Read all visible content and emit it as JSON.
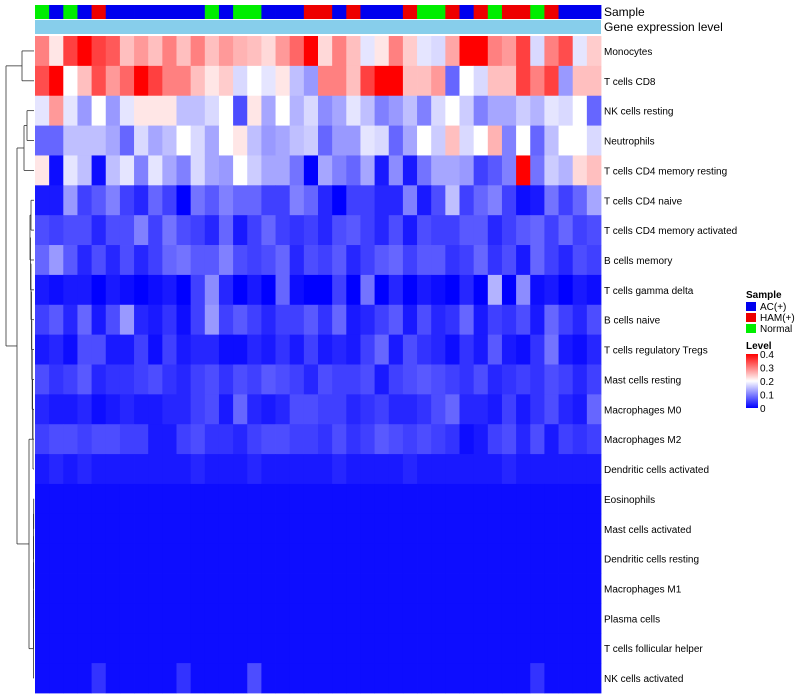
{
  "chart_data": {
    "type": "heatmap",
    "annotation_tracks": [
      "Sample",
      "Gene expression level"
    ],
    "rows": [
      "Monocytes",
      "T cells CD8",
      "NK cells resting",
      "Neutrophils",
      "T cells CD4 memory resting",
      "T cells CD4 naive",
      "T cells CD4 memory activated",
      "B cells memory",
      "T cells gamma delta",
      "B cells naive",
      "T cells regulatory  Tregs",
      "Mast cells resting",
      "Macrophages M0",
      "Macrophages M2",
      "Dendritic cells activated",
      "Eosinophils",
      "Mast cells activated",
      "Dendritic cells resting",
      "Macrophages M1",
      "Plasma cells",
      "T cells follicular helper",
      "NK cells activated"
    ],
    "column_samples": [
      "Normal",
      "AC(+)",
      "Normal",
      "AC(+)",
      "HAM(+)",
      "AC(+)",
      "AC(+)",
      "AC(+)",
      "AC(+)",
      "AC(+)",
      "AC(+)",
      "AC(+)",
      "Normal",
      "AC(+)",
      "Normal",
      "Normal",
      "AC(+)",
      "AC(+)",
      "AC(+)",
      "HAM(+)",
      "HAM(+)",
      "AC(+)",
      "HAM(+)",
      "AC(+)",
      "AC(+)",
      "AC(+)",
      "HAM(+)",
      "Normal",
      "Normal",
      "HAM(+)",
      "AC(+)",
      "HAM(+)",
      "Normal",
      "HAM(+)",
      "HAM(+)",
      "Normal",
      "HAM(+)",
      "AC(+)",
      "AC(+)",
      "AC(+)"
    ],
    "values": [
      [
        0.3,
        0.22,
        0.35,
        0.42,
        0.35,
        0.33,
        0.25,
        0.28,
        0.25,
        0.3,
        0.25,
        0.3,
        0.25,
        0.28,
        0.26,
        0.25,
        0.23,
        0.28,
        0.32,
        0.42,
        0.23,
        0.3,
        0.25,
        0.18,
        0.22,
        0.3,
        0.24,
        0.18,
        0.17,
        0.27,
        0.4,
        0.42,
        0.3,
        0.28,
        0.35,
        0.17,
        0.3,
        0.34,
        0.18,
        0.24
      ],
      [
        0.34,
        0.42,
        0.2,
        0.25,
        0.34,
        0.28,
        0.32,
        0.42,
        0.35,
        0.3,
        0.3,
        0.25,
        0.22,
        0.24,
        0.17,
        0.2,
        0.18,
        0.22,
        0.15,
        0.12,
        0.3,
        0.3,
        0.25,
        0.35,
        0.4,
        0.4,
        0.25,
        0.25,
        0.28,
        0.08,
        0.2,
        0.17,
        0.25,
        0.25,
        0.35,
        0.3,
        0.35,
        0.12,
        0.25,
        0.25
      ],
      [
        0.18,
        0.28,
        0.18,
        0.12,
        0.2,
        0.12,
        0.18,
        0.22,
        0.22,
        0.22,
        0.15,
        0.15,
        0.17,
        0.2,
        0.06,
        0.22,
        0.13,
        0.2,
        0.14,
        0.17,
        0.11,
        0.13,
        0.18,
        0.15,
        0.1,
        0.12,
        0.15,
        0.1,
        0.17,
        0.2,
        0.16,
        0.1,
        0.13,
        0.13,
        0.16,
        0.14,
        0.18,
        0.17,
        0.2,
        0.08
      ],
      [
        0.08,
        0.08,
        0.15,
        0.15,
        0.15,
        0.13,
        0.08,
        0.17,
        0.13,
        0.15,
        0.2,
        0.17,
        0.13,
        0.2,
        0.22,
        0.15,
        0.12,
        0.13,
        0.15,
        0.16,
        0.08,
        0.12,
        0.12,
        0.18,
        0.17,
        0.08,
        0.13,
        0.2,
        0.16,
        0.25,
        0.17,
        0.2,
        0.26,
        0.1,
        0.2,
        0.08,
        0.15,
        0.2,
        0.2,
        0.17
      ],
      [
        0.22,
        0.01,
        0.18,
        0.15,
        0.01,
        0.15,
        0.18,
        0.1,
        0.18,
        0.13,
        0.1,
        0.17,
        0.13,
        0.12,
        0.2,
        0.16,
        0.13,
        0.13,
        0.09,
        0.0,
        0.13,
        0.1,
        0.08,
        0.13,
        0.02,
        0.11,
        0.02,
        0.09,
        0.13,
        0.13,
        0.12,
        0.05,
        0.07,
        0.1,
        0.4,
        0.09,
        0.16,
        0.14,
        0.23,
        0.25
      ],
      [
        0.02,
        0.02,
        0.12,
        0.05,
        0.07,
        0.1,
        0.05,
        0.03,
        0.08,
        0.05,
        0.0,
        0.09,
        0.07,
        0.1,
        0.08,
        0.08,
        0.05,
        0.05,
        0.1,
        0.08,
        0.03,
        0.0,
        0.05,
        0.05,
        0.03,
        0.03,
        0.1,
        0.02,
        0.06,
        0.15,
        0.05,
        0.08,
        0.1,
        0.05,
        0.01,
        0.02,
        0.09,
        0.05,
        0.08,
        0.13
      ],
      [
        0.06,
        0.05,
        0.06,
        0.06,
        0.03,
        0.06,
        0.06,
        0.1,
        0.05,
        0.09,
        0.06,
        0.05,
        0.03,
        0.08,
        0.02,
        0.05,
        0.08,
        0.05,
        0.04,
        0.05,
        0.03,
        0.06,
        0.07,
        0.05,
        0.03,
        0.06,
        0.02,
        0.06,
        0.05,
        0.05,
        0.07,
        0.07,
        0.03,
        0.05,
        0.07,
        0.08,
        0.05,
        0.08,
        0.05,
        0.06
      ],
      [
        0.08,
        0.12,
        0.07,
        0.03,
        0.06,
        0.03,
        0.06,
        0.03,
        0.05,
        0.08,
        0.09,
        0.07,
        0.07,
        0.1,
        0.06,
        0.05,
        0.06,
        0.08,
        0.03,
        0.06,
        0.05,
        0.07,
        0.03,
        0.05,
        0.07,
        0.08,
        0.05,
        0.07,
        0.07,
        0.04,
        0.05,
        0.08,
        0.04,
        0.06,
        0.02,
        0.08,
        0.05,
        0.03,
        0.06,
        0.05
      ],
      [
        0.02,
        0.01,
        0.02,
        0.02,
        0.0,
        0.02,
        0.01,
        0.0,
        0.01,
        0.02,
        0.0,
        0.05,
        0.11,
        0.03,
        0.0,
        0.02,
        0.0,
        0.08,
        0.01,
        0.0,
        0.0,
        0.05,
        0.0,
        0.09,
        0.0,
        0.03,
        0.0,
        0.02,
        0.01,
        0.0,
        0.03,
        0.0,
        0.14,
        0.0,
        0.11,
        0.01,
        0.02,
        0.0,
        0.02,
        0.01
      ],
      [
        0.05,
        0.07,
        0.03,
        0.08,
        0.02,
        0.06,
        0.12,
        0.03,
        0.02,
        0.04,
        0.01,
        0.05,
        0.12,
        0.05,
        0.07,
        0.05,
        0.03,
        0.05,
        0.05,
        0.07,
        0.04,
        0.08,
        0.02,
        0.03,
        0.05,
        0.07,
        0.02,
        0.06,
        0.03,
        0.04,
        0.08,
        0.02,
        0.05,
        0.04,
        0.06,
        0.02,
        0.08,
        0.05,
        0.03,
        0.06
      ],
      [
        0.02,
        0.03,
        0.01,
        0.06,
        0.06,
        0.02,
        0.02,
        0.05,
        0.01,
        0.05,
        0.02,
        0.03,
        0.03,
        0.01,
        0.01,
        0.03,
        0.02,
        0.04,
        0.02,
        0.05,
        0.02,
        0.03,
        0.02,
        0.05,
        0.08,
        0.02,
        0.06,
        0.04,
        0.03,
        0.01,
        0.04,
        0.02,
        0.07,
        0.02,
        0.01,
        0.04,
        0.09,
        0.02,
        0.01,
        0.03
      ],
      [
        0.06,
        0.04,
        0.05,
        0.07,
        0.03,
        0.04,
        0.04,
        0.05,
        0.06,
        0.04,
        0.03,
        0.05,
        0.06,
        0.04,
        0.06,
        0.05,
        0.07,
        0.06,
        0.05,
        0.03,
        0.06,
        0.05,
        0.05,
        0.06,
        0.02,
        0.05,
        0.06,
        0.07,
        0.06,
        0.05,
        0.04,
        0.06,
        0.03,
        0.04,
        0.05,
        0.04,
        0.06,
        0.05,
        0.03,
        0.05
      ],
      [
        0.03,
        0.02,
        0.02,
        0.03,
        0.01,
        0.02,
        0.03,
        0.02,
        0.02,
        0.03,
        0.03,
        0.05,
        0.06,
        0.02,
        0.08,
        0.03,
        0.02,
        0.03,
        0.06,
        0.06,
        0.05,
        0.05,
        0.03,
        0.04,
        0.05,
        0.03,
        0.03,
        0.04,
        0.06,
        0.08,
        0.03,
        0.03,
        0.02,
        0.05,
        0.02,
        0.04,
        0.06,
        0.03,
        0.02,
        0.08
      ],
      [
        0.05,
        0.06,
        0.06,
        0.05,
        0.06,
        0.06,
        0.05,
        0.05,
        0.02,
        0.02,
        0.05,
        0.06,
        0.04,
        0.04,
        0.03,
        0.05,
        0.06,
        0.06,
        0.05,
        0.05,
        0.04,
        0.06,
        0.04,
        0.05,
        0.07,
        0.06,
        0.05,
        0.06,
        0.05,
        0.04,
        0.01,
        0.02,
        0.05,
        0.06,
        0.03,
        0.06,
        0.02,
        0.05,
        0.04,
        0.05
      ],
      [
        0.02,
        0.03,
        0.02,
        0.03,
        0.02,
        0.02,
        0.02,
        0.02,
        0.02,
        0.02,
        0.02,
        0.03,
        0.02,
        0.02,
        0.02,
        0.03,
        0.02,
        0.02,
        0.02,
        0.02,
        0.02,
        0.03,
        0.02,
        0.02,
        0.02,
        0.02,
        0.03,
        0.02,
        0.02,
        0.02,
        0.02,
        0.02,
        0.02,
        0.03,
        0.02,
        0.02,
        0.02,
        0.02,
        0.02,
        0.02
      ],
      [
        0.01,
        0.01,
        0.01,
        0.01,
        0.01,
        0.01,
        0.01,
        0.01,
        0.01,
        0.01,
        0.01,
        0.01,
        0.01,
        0.01,
        0.01,
        0.01,
        0.01,
        0.01,
        0.01,
        0.01,
        0.01,
        0.01,
        0.01,
        0.01,
        0.01,
        0.01,
        0.01,
        0.01,
        0.01,
        0.01,
        0.01,
        0.01,
        0.01,
        0.01,
        0.01,
        0.01,
        0.01,
        0.01,
        0.01,
        0.01
      ],
      [
        0.01,
        0.01,
        0.01,
        0.01,
        0.01,
        0.01,
        0.01,
        0.01,
        0.01,
        0.01,
        0.01,
        0.01,
        0.01,
        0.01,
        0.01,
        0.01,
        0.01,
        0.01,
        0.01,
        0.01,
        0.01,
        0.01,
        0.01,
        0.01,
        0.01,
        0.01,
        0.01,
        0.01,
        0.01,
        0.01,
        0.01,
        0.01,
        0.01,
        0.01,
        0.01,
        0.01,
        0.01,
        0.01,
        0.01,
        0.01
      ],
      [
        0.01,
        0.01,
        0.01,
        0.01,
        0.01,
        0.01,
        0.01,
        0.01,
        0.01,
        0.01,
        0.01,
        0.01,
        0.01,
        0.01,
        0.01,
        0.01,
        0.01,
        0.01,
        0.01,
        0.01,
        0.01,
        0.01,
        0.01,
        0.01,
        0.01,
        0.01,
        0.01,
        0.01,
        0.01,
        0.01,
        0.01,
        0.01,
        0.01,
        0.01,
        0.01,
        0.01,
        0.01,
        0.01,
        0.01,
        0.01
      ],
      [
        0.01,
        0.01,
        0.01,
        0.01,
        0.01,
        0.01,
        0.01,
        0.01,
        0.01,
        0.01,
        0.01,
        0.01,
        0.01,
        0.01,
        0.01,
        0.01,
        0.01,
        0.01,
        0.01,
        0.01,
        0.01,
        0.01,
        0.01,
        0.01,
        0.01,
        0.01,
        0.01,
        0.01,
        0.01,
        0.01,
        0.01,
        0.01,
        0.01,
        0.01,
        0.01,
        0.01,
        0.01,
        0.01,
        0.01,
        0.01
      ],
      [
        0.01,
        0.01,
        0.01,
        0.01,
        0.01,
        0.01,
        0.01,
        0.01,
        0.01,
        0.01,
        0.01,
        0.01,
        0.01,
        0.01,
        0.01,
        0.01,
        0.01,
        0.01,
        0.01,
        0.01,
        0.01,
        0.01,
        0.01,
        0.01,
        0.01,
        0.01,
        0.01,
        0.01,
        0.01,
        0.01,
        0.01,
        0.01,
        0.01,
        0.01,
        0.01,
        0.01,
        0.01,
        0.01,
        0.01,
        0.01
      ],
      [
        0.01,
        0.01,
        0.01,
        0.01,
        0.01,
        0.01,
        0.01,
        0.01,
        0.01,
        0.01,
        0.01,
        0.01,
        0.01,
        0.01,
        0.01,
        0.01,
        0.01,
        0.01,
        0.01,
        0.01,
        0.01,
        0.01,
        0.01,
        0.01,
        0.01,
        0.01,
        0.01,
        0.01,
        0.01,
        0.01,
        0.01,
        0.01,
        0.01,
        0.01,
        0.01,
        0.01,
        0.01,
        0.01,
        0.01,
        0.01
      ],
      [
        0.01,
        0.01,
        0.01,
        0.01,
        0.04,
        0.01,
        0.01,
        0.01,
        0.01,
        0.01,
        0.04,
        0.01,
        0.01,
        0.01,
        0.01,
        0.06,
        0.01,
        0.01,
        0.01,
        0.01,
        0.01,
        0.01,
        0.01,
        0.01,
        0.01,
        0.01,
        0.01,
        0.01,
        0.01,
        0.01,
        0.01,
        0.01,
        0.01,
        0.01,
        0.01,
        0.04,
        0.01,
        0.01,
        0.01,
        0.01
      ]
    ],
    "legend": {
      "sample_title": "Sample",
      "sample_items": [
        {
          "label": "AC(+)",
          "color": "#0000ee"
        },
        {
          "label": "HAM(+)",
          "color": "#ee0000"
        },
        {
          "label": "Normal",
          "color": "#00ee00"
        }
      ],
      "level_title": "Level",
      "level_ticks": [
        "0.4",
        "0.3",
        "0.2",
        "0.1",
        "0"
      ],
      "range": [
        0,
        0.4
      ],
      "colors": {
        "low": "#0000ff",
        "mid": "#ffffff",
        "high": "#ff0000"
      }
    },
    "expression_track_color": "#87ceeb"
  }
}
